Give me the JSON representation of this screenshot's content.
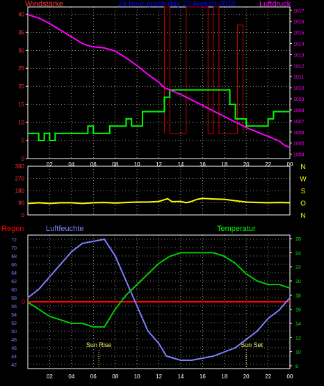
{
  "panel_labels": {
    "wind": "Windstärke",
    "title": "24 hour graph day 23 August 2018",
    "pressure": "Luftdruck",
    "rain": "Regen",
    "humidity": "Luftfeuchte",
    "temperature": "Temperatur",
    "sun_rise": "Sun Rise",
    "sun_set": "Sun Set",
    "rain_zero": "0"
  },
  "colors": {
    "wind": "#00ff00",
    "gust": "#cc0000",
    "pressure": "#ff00ff",
    "direction": "#ffff00",
    "humidity": "#8080ff",
    "temperature": "#00cc00",
    "rain": "#ff0000",
    "axis_wind": "#ff3333",
    "axis_pressure": "#ff00ff",
    "axis_compass": "#ffff00",
    "axis_humidity": "#8080ff",
    "axis_temp": "#00ff00",
    "hour_label": "#ffffff",
    "title": "#0000ff"
  },
  "chart_data": [
    {
      "type": "line",
      "name_hint": "wind-pressure",
      "x_ticks": [
        "02",
        "04",
        "06",
        "08",
        "10",
        "12",
        "14",
        "16",
        "18",
        "20",
        "22",
        "00"
      ],
      "y_left_ticks": [
        "0",
        "5",
        "10",
        "15",
        "20",
        "25",
        "30",
        "35",
        "40"
      ],
      "y_left_range": [
        0,
        42
      ],
      "y_right_ticks": [
        "1004",
        "1005",
        "1006",
        "1007",
        "1008",
        "1009",
        "1010",
        "1011",
        "1012",
        "1013",
        "1014",
        "1015",
        "1016",
        "1017"
      ],
      "y_right_range": [
        1003.6,
        1017.3
      ],
      "x_range": [
        0,
        24
      ],
      "wind_avg": [
        [
          0,
          7
        ],
        [
          1,
          7
        ],
        [
          1,
          5
        ],
        [
          1.5,
          5
        ],
        [
          1.5,
          7
        ],
        [
          2,
          7
        ],
        [
          2,
          5
        ],
        [
          2.5,
          5
        ],
        [
          2.5,
          7
        ],
        [
          5.5,
          7
        ],
        [
          5.5,
          9
        ],
        [
          6,
          9
        ],
        [
          6,
          7
        ],
        [
          7.5,
          7
        ],
        [
          7.5,
          9
        ],
        [
          9,
          9
        ],
        [
          9,
          11
        ],
        [
          9.5,
          11
        ],
        [
          9.5,
          9
        ],
        [
          10.5,
          9
        ],
        [
          10.5,
          13
        ],
        [
          12.5,
          13
        ],
        [
          12.5,
          17
        ],
        [
          13,
          17
        ],
        [
          13,
          19
        ],
        [
          18.5,
          19
        ],
        [
          18.5,
          15
        ],
        [
          19,
          15
        ],
        [
          19,
          11
        ],
        [
          20,
          11
        ],
        [
          20,
          9
        ],
        [
          22,
          9
        ],
        [
          22,
          11
        ],
        [
          22.5,
          11
        ],
        [
          22.5,
          13
        ],
        [
          24,
          13
        ]
      ],
      "wind_gust": [
        [
          12.5,
          7
        ],
        [
          12.5,
          42
        ],
        [
          13,
          42
        ],
        [
          13,
          7
        ],
        [
          14.5,
          7
        ],
        [
          14.5,
          42
        ],
        [
          16,
          42
        ],
        [
          16,
          44
        ],
        [
          16.5,
          44
        ],
        [
          16.5,
          7
        ],
        [
          17,
          7
        ],
        [
          17,
          42
        ],
        [
          17.5,
          42
        ],
        [
          17.5,
          7
        ],
        [
          19.2,
          7
        ],
        [
          19.2,
          37
        ],
        [
          19.7,
          37
        ],
        [
          19.7,
          7
        ]
      ],
      "pressure": [
        [
          0,
          1016.6
        ],
        [
          1,
          1016.3
        ],
        [
          2,
          1015.8
        ],
        [
          3,
          1015.2
        ],
        [
          4,
          1014.6
        ],
        [
          5,
          1014.0
        ],
        [
          5.5,
          1013.8
        ],
        [
          6,
          1013.7
        ],
        [
          7,
          1013.6
        ],
        [
          8,
          1013.3
        ],
        [
          9,
          1012.7
        ],
        [
          10,
          1012.0
        ],
        [
          11,
          1011.2
        ],
        [
          12,
          1010.5
        ],
        [
          12.5,
          1010.0
        ],
        [
          13,
          1009.8
        ],
        [
          14,
          1009.4
        ],
        [
          15,
          1008.9
        ],
        [
          16,
          1008.4
        ],
        [
          17,
          1007.9
        ],
        [
          18,
          1007.4
        ],
        [
          19,
          1006.9
        ],
        [
          20,
          1006.4
        ],
        [
          21,
          1006.0
        ],
        [
          22,
          1005.6
        ],
        [
          23,
          1005.2
        ],
        [
          23.5,
          1004.8
        ],
        [
          24,
          1004.6
        ]
      ]
    },
    {
      "type": "line",
      "name_hint": "wind-direction",
      "x_range": [
        0,
        24
      ],
      "y_left_ticks": [
        "0",
        "90",
        "180",
        "270",
        "360"
      ],
      "y_range": [
        0,
        360
      ],
      "y_right_ticks": [
        "N",
        "W",
        "S",
        "O",
        "N"
      ],
      "direction": [
        [
          0,
          85
        ],
        [
          1,
          90
        ],
        [
          2,
          85
        ],
        [
          3,
          90
        ],
        [
          4,
          90
        ],
        [
          5,
          85
        ],
        [
          6,
          90
        ],
        [
          7,
          92
        ],
        [
          8,
          88
        ],
        [
          9,
          92
        ],
        [
          10,
          95
        ],
        [
          11,
          95
        ],
        [
          12,
          100
        ],
        [
          12.8,
          120
        ],
        [
          13.2,
          98
        ],
        [
          14,
          100
        ],
        [
          14.5,
          90
        ],
        [
          15,
          100
        ],
        [
          15.5,
          115
        ],
        [
          16,
          122
        ],
        [
          17,
          118
        ],
        [
          18,
          115
        ],
        [
          19,
          105
        ],
        [
          20,
          95
        ],
        [
          21,
          92
        ],
        [
          22,
          90
        ],
        [
          23,
          92
        ],
        [
          24,
          90
        ]
      ]
    },
    {
      "type": "line",
      "name_hint": "humidity-temperature",
      "x_range": [
        0,
        24
      ],
      "x_ticks": [
        "02",
        "04",
        "06",
        "08",
        "10",
        "12",
        "14",
        "16",
        "18",
        "20",
        "22",
        "00"
      ],
      "y_left_ticks": [
        "42",
        "44",
        "46",
        "48",
        "50",
        "52",
        "54",
        "56",
        "58",
        "60",
        "62",
        "64",
        "66",
        "68",
        "70",
        "72"
      ],
      "y_left_range": [
        41,
        73
      ],
      "y_right_ticks": [
        "8",
        "10",
        "12",
        "14",
        "16",
        "18",
        "20",
        "22",
        "24",
        "26"
      ],
      "y_right_range": [
        7.6,
        26.5
      ],
      "rain_line": 0,
      "sun_rise_hour": 6.5,
      "sun_set_hour": 20,
      "humidity": [
        [
          0,
          58
        ],
        [
          1,
          60
        ],
        [
          2,
          63
        ],
        [
          3,
          66
        ],
        [
          4,
          69
        ],
        [
          5,
          71
        ],
        [
          6,
          71.5
        ],
        [
          7,
          72
        ],
        [
          8,
          68
        ],
        [
          9,
          62
        ],
        [
          10,
          56
        ],
        [
          11,
          50
        ],
        [
          12,
          47
        ],
        [
          12.7,
          44
        ],
        [
          14,
          43
        ],
        [
          15,
          43
        ],
        [
          16,
          43.5
        ],
        [
          17,
          44
        ],
        [
          18,
          45
        ],
        [
          19,
          46
        ],
        [
          20,
          48
        ],
        [
          21,
          50
        ],
        [
          22,
          53
        ],
        [
          23,
          55
        ],
        [
          24,
          58
        ]
      ],
      "temperature": [
        [
          0,
          17
        ],
        [
          1,
          16
        ],
        [
          2,
          15
        ],
        [
          3,
          14.5
        ],
        [
          4,
          14
        ],
        [
          5,
          14
        ],
        [
          6,
          13.5
        ],
        [
          7,
          13.5
        ],
        [
          8,
          16
        ],
        [
          9,
          18
        ],
        [
          10,
          19.5
        ],
        [
          11,
          21
        ],
        [
          12,
          22.5
        ],
        [
          13,
          23.5
        ],
        [
          14,
          24
        ],
        [
          15,
          24
        ],
        [
          16,
          24
        ],
        [
          17,
          24
        ],
        [
          18,
          23.5
        ],
        [
          19,
          22.5
        ],
        [
          20,
          21
        ],
        [
          21,
          20
        ],
        [
          22,
          19.5
        ],
        [
          23,
          19.5
        ],
        [
          24,
          19
        ]
      ]
    }
  ]
}
